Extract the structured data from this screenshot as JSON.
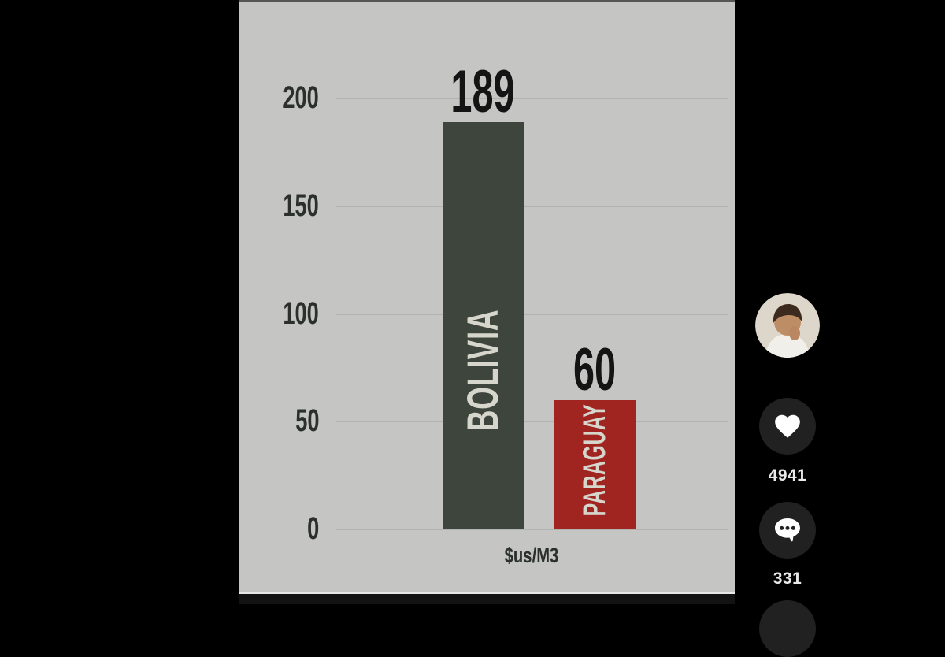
{
  "chart_data": {
    "type": "bar",
    "categories": [
      "BOLIVIA",
      "PARAGUAY"
    ],
    "values": [
      189,
      60
    ],
    "title": "",
    "xlabel": "$us/M3",
    "ylabel": "",
    "ylim": [
      0,
      200
    ],
    "yticks": [
      0,
      50,
      100,
      150,
      200
    ],
    "grid": true,
    "legend": "none",
    "colors": {
      "bars": [
        "#3e453d",
        "#a02420"
      ],
      "bar_label": "#d6d6cd",
      "value_label": "#141414",
      "axis_text": "#2b302b",
      "gridline": "#b1b3b0",
      "background": "#c5c6c4"
    }
  },
  "action_rail": {
    "follow_button": {
      "label": "+",
      "color": "#fe2c55"
    },
    "like": {
      "icon": "heart-icon",
      "count": "4941"
    },
    "comments": {
      "icon": "comment-icon",
      "count": "331"
    }
  },
  "player": {
    "progress_bar_color": "#e8e8e8"
  }
}
